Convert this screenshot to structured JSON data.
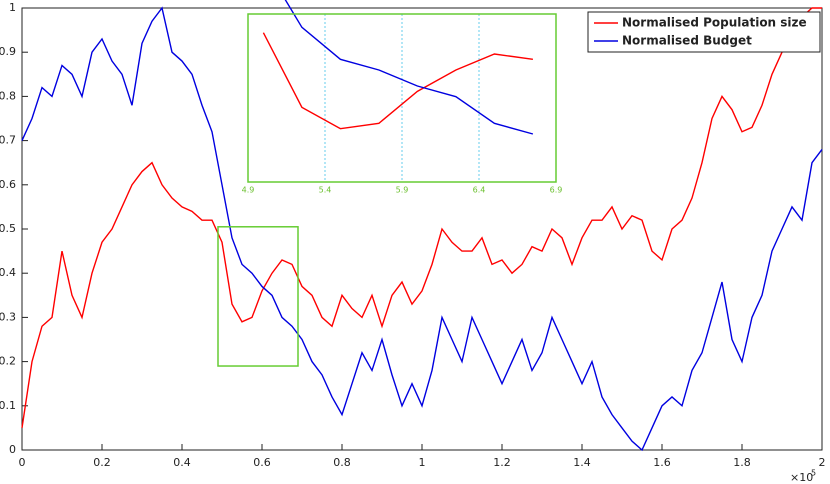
{
  "chart_data": {
    "type": "line",
    "step": true,
    "x": [
      0,
      0.025,
      0.05,
      0.075,
      0.1,
      0.125,
      0.15,
      0.175,
      0.2,
      0.225,
      0.25,
      0.275,
      0.3,
      0.325,
      0.35,
      0.375,
      0.4,
      0.425,
      0.45,
      0.475,
      0.5,
      0.525,
      0.55,
      0.575,
      0.6,
      0.625,
      0.65,
      0.675,
      0.7,
      0.725,
      0.75,
      0.775,
      0.8,
      0.825,
      0.85,
      0.875,
      0.9,
      0.925,
      0.95,
      0.975,
      1,
      1.025,
      1.05,
      1.075,
      1.1,
      1.125,
      1.15,
      1.175,
      1.2,
      1.225,
      1.25,
      1.275,
      1.3,
      1.325,
      1.35,
      1.375,
      1.4,
      1.425,
      1.45,
      1.475,
      1.5,
      1.525,
      1.55,
      1.575,
      1.6,
      1.625,
      1.65,
      1.675,
      1.7,
      1.725,
      1.75,
      1.775,
      1.8,
      1.825,
      1.85,
      1.875,
      1.9,
      1.925,
      1.95,
      1.975,
      2
    ],
    "series": [
      {
        "name": "Normalised Population size",
        "color": "#ff0000",
        "values": [
          0.05,
          0.2,
          0.28,
          0.3,
          0.45,
          0.35,
          0.3,
          0.4,
          0.47,
          0.5,
          0.55,
          0.6,
          0.63,
          0.65,
          0.6,
          0.57,
          0.55,
          0.54,
          0.52,
          0.52,
          0.47,
          0.33,
          0.29,
          0.3,
          0.36,
          0.4,
          0.43,
          0.42,
          0.37,
          0.35,
          0.3,
          0.28,
          0.35,
          0.32,
          0.3,
          0.35,
          0.28,
          0.35,
          0.38,
          0.33,
          0.36,
          0.42,
          0.5,
          0.47,
          0.45,
          0.45,
          0.48,
          0.42,
          0.43,
          0.4,
          0.42,
          0.46,
          0.45,
          0.5,
          0.48,
          0.42,
          0.48,
          0.52,
          0.52,
          0.55,
          0.5,
          0.53,
          0.52,
          0.45,
          0.43,
          0.5,
          0.52,
          0.57,
          0.65,
          0.75,
          0.8,
          0.77,
          0.72,
          0.73,
          0.78,
          0.85,
          0.9,
          0.95,
          0.98,
          1.0,
          1.0
        ]
      },
      {
        "name": "Normalised Budget",
        "color": "#0000e0",
        "values": [
          0.7,
          0.75,
          0.82,
          0.8,
          0.87,
          0.85,
          0.8,
          0.9,
          0.93,
          0.88,
          0.85,
          0.78,
          0.92,
          0.97,
          1.0,
          0.9,
          0.88,
          0.85,
          0.78,
          0.72,
          0.6,
          0.48,
          0.42,
          0.4,
          0.37,
          0.35,
          0.3,
          0.28,
          0.25,
          0.2,
          0.17,
          0.12,
          0.08,
          0.15,
          0.22,
          0.18,
          0.25,
          0.17,
          0.1,
          0.15,
          0.1,
          0.18,
          0.3,
          0.25,
          0.2,
          0.3,
          0.25,
          0.2,
          0.15,
          0.2,
          0.25,
          0.18,
          0.22,
          0.3,
          0.25,
          0.2,
          0.15,
          0.2,
          0.12,
          0.08,
          0.05,
          0.02,
          0.0,
          0.05,
          0.1,
          0.12,
          0.1,
          0.18,
          0.22,
          0.3,
          0.38,
          0.25,
          0.2,
          0.3,
          0.35,
          0.45,
          0.5,
          0.55,
          0.52,
          0.65,
          0.68
        ]
      }
    ],
    "xlim": [
      0,
      2
    ],
    "xticks": [
      0,
      0.2,
      0.4,
      0.6,
      0.8,
      1,
      1.2,
      1.4,
      1.6,
      1.8,
      2
    ],
    "ylim": [
      0,
      1
    ],
    "yticks": [
      0,
      0.1,
      0.2,
      0.3,
      0.4,
      0.5,
      0.6,
      0.7,
      0.8,
      0.9,
      1
    ],
    "x_scale_label": {
      "base": "×10",
      "exponent": "5"
    },
    "legend": "northeast",
    "zoom_box": {
      "color": "#66cc33",
      "xlim": [
        0.49,
        0.69
      ],
      "ylim": [
        0.19,
        0.505
      ]
    },
    "inset": {
      "xlim": [
        4.9,
        6.9
      ],
      "xticks": [
        4.9,
        5.4,
        5.9,
        6.4,
        6.9
      ],
      "grid_color": "#66ccee"
    }
  }
}
